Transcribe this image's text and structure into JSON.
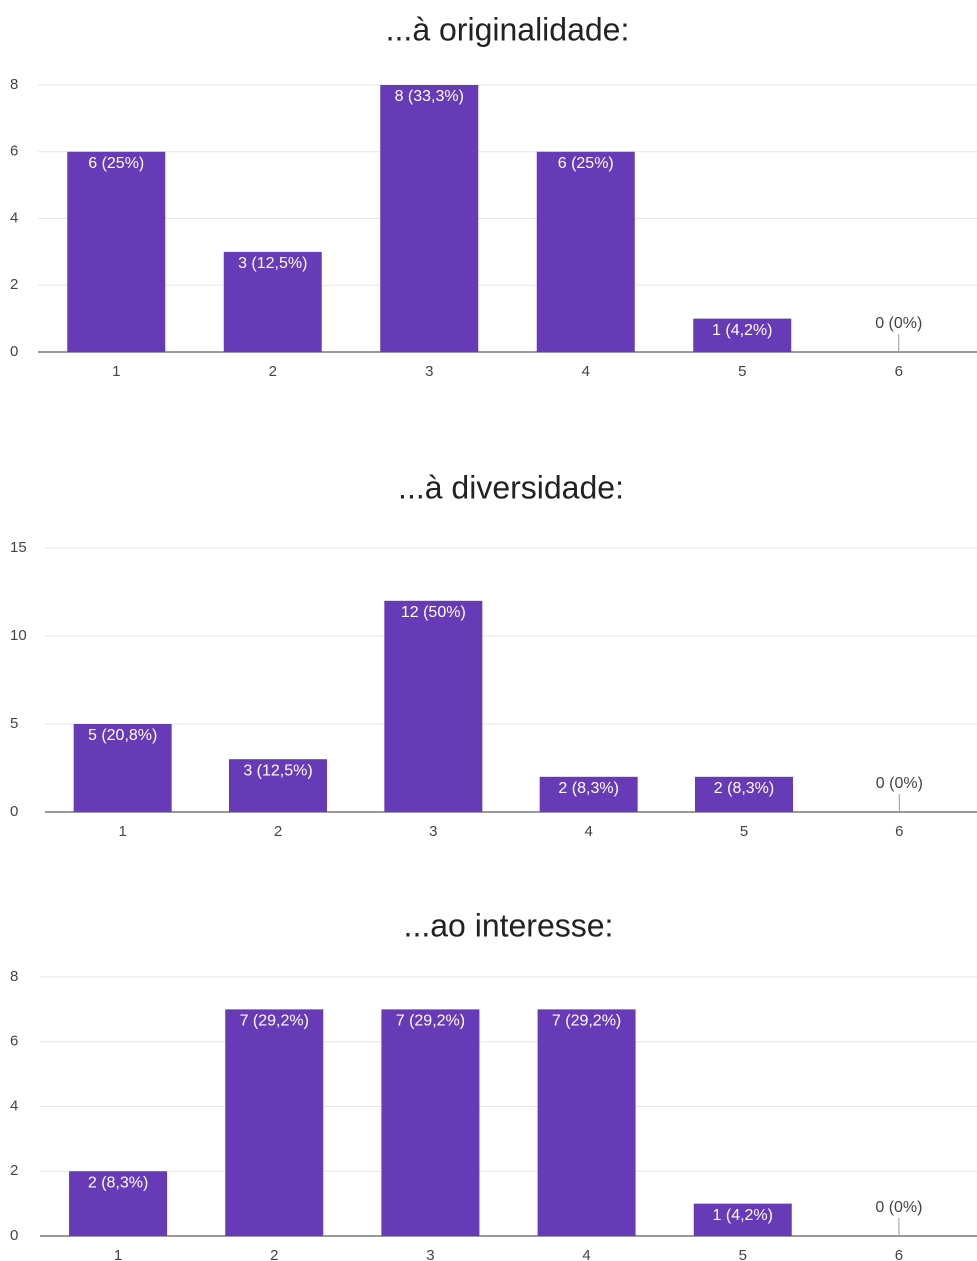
{
  "chart_data": [
    {
      "type": "bar",
      "title": "...à originalidade:",
      "categories": [
        "1",
        "2",
        "3",
        "4",
        "5",
        "6"
      ],
      "values": [
        6,
        3,
        8,
        6,
        1,
        0
      ],
      "value_labels": [
        "6 (25%)",
        "3 (12,5%)",
        "8 (33,3%)",
        "6 (25%)",
        "1 (4,2%)",
        "0 (0%)"
      ],
      "color": "#673ab7",
      "ylim": [
        0,
        8
      ],
      "yticks": [
        0,
        2,
        4,
        6,
        8
      ],
      "grid": true
    },
    {
      "type": "bar",
      "title": "...à diversidade:",
      "categories": [
        "1",
        "2",
        "3",
        "4",
        "5",
        "6"
      ],
      "values": [
        5,
        3,
        12,
        2,
        2,
        0
      ],
      "value_labels": [
        "5 (20,8%)",
        "3 (12,5%)",
        "12 (50%)",
        "2 (8,3%)",
        "2 (8,3%)",
        "0 (0%)"
      ],
      "color": "#673ab7",
      "ylim": [
        0,
        15
      ],
      "yticks": [
        0,
        5,
        10,
        15
      ],
      "grid": true
    },
    {
      "type": "bar",
      "title": "...ao interesse:",
      "categories": [
        "1",
        "2",
        "3",
        "4",
        "5",
        "6"
      ],
      "values": [
        2,
        7,
        7,
        7,
        1,
        0
      ],
      "value_labels": [
        "2 (8,3%)",
        "7 (29,2%)",
        "7 (29,2%)",
        "7 (29,2%)",
        "1 (4,2%)",
        "0 (0%)"
      ],
      "color": "#673ab7",
      "ylim": [
        0,
        8
      ],
      "yticks": [
        0,
        2,
        4,
        6,
        8
      ],
      "grid": true
    }
  ]
}
